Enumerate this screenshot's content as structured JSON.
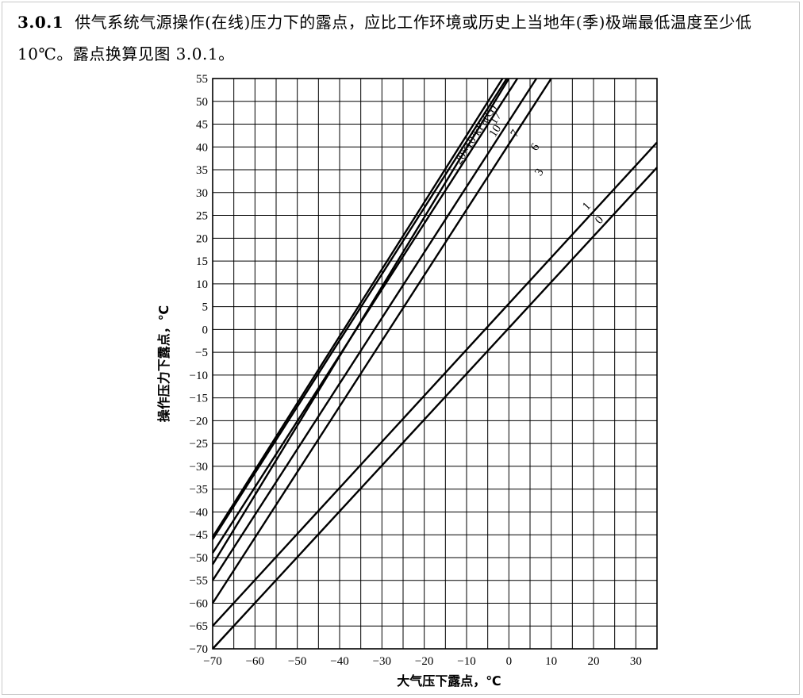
{
  "clause": {
    "number": "3.0.1",
    "text": "供气系统气源操作(在线)压力下的露点，应比工作环境或历史上当地年(季)极端最低温度至少低 10℃。露点换算见图 3.0.1。"
  },
  "chart_data": {
    "type": "line",
    "title": "",
    "xlabel": "大气压下露点，℃",
    "ylabel": "操作压力下露点，℃",
    "xlim": [
      -70,
      35
    ],
    "ylim": [
      -70,
      55
    ],
    "x_ticks": [
      -70,
      -60,
      -50,
      -40,
      -30,
      -20,
      -10,
      0,
      10,
      20,
      30
    ],
    "y_ticks": [
      55,
      50,
      45,
      40,
      35,
      30,
      25,
      20,
      15,
      10,
      5,
      0,
      -5,
      -10,
      -15,
      -20,
      -25,
      -30,
      -35,
      -40,
      -45,
      -50,
      -55,
      -60,
      -65,
      -70
    ],
    "x_tick_labels": [
      "−70",
      "−60",
      "−50",
      "−40",
      "−30",
      "−20",
      "−10",
      "0",
      "10",
      "20",
      "30"
    ],
    "y_tick_labels": [
      "55",
      "50",
      "45",
      "40",
      "35",
      "30",
      "25",
      "20",
      "15",
      "10",
      "5",
      "0",
      "−5",
      "−10",
      "−15",
      "−20",
      "−25",
      "−30",
      "−35",
      "−40",
      "−45",
      "−50",
      "−55",
      "−60",
      "−65",
      "−70"
    ],
    "grid": true,
    "series": [
      {
        "name": "0",
        "x": [
          -70,
          35
        ],
        "y": [
          -70,
          35.5
        ]
      },
      {
        "name": "1",
        "x": [
          -70,
          35
        ],
        "y": [
          -65,
          41
        ]
      },
      {
        "name": "3",
        "x": [
          -70,
          10
        ],
        "y": [
          -60,
          55
        ]
      },
      {
        "name": "6",
        "x": [
          -70,
          6.5
        ],
        "y": [
          -55,
          55
        ]
      },
      {
        "name": "7",
        "x": [
          -70,
          0
        ],
        "y": [
          -51.5,
          55
        ]
      },
      {
        "name": "10",
        "x": [
          -70,
          2
        ],
        "y": [
          -49,
          55
        ]
      },
      {
        "name": "17",
        "x": [
          -70,
          -0.5
        ],
        "y": [
          -46,
          55
        ]
      },
      {
        "name": "20×10²kPa(G)",
        "x": [
          -70,
          -1.5
        ],
        "y": [
          -45.5,
          55
        ]
      }
    ],
    "curve_label_positions": [
      {
        "name": "0",
        "x": 21.5,
        "y": 23
      },
      {
        "name": "1",
        "x": 18.5,
        "y": 26
      },
      {
        "name": "3",
        "x": 7.5,
        "y": 33.5
      },
      {
        "name": "6",
        "x": 6.5,
        "y": 39
      },
      {
        "name": "7",
        "x": 1.8,
        "y": 42
      },
      {
        "name": "10",
        "x": -3.3,
        "y": 42
      },
      {
        "name": "17",
        "x": -3.2,
        "y": 44.8
      },
      {
        "name": "20×10²kPa(G)",
        "x": -11.5,
        "y": 36
      }
    ]
  }
}
